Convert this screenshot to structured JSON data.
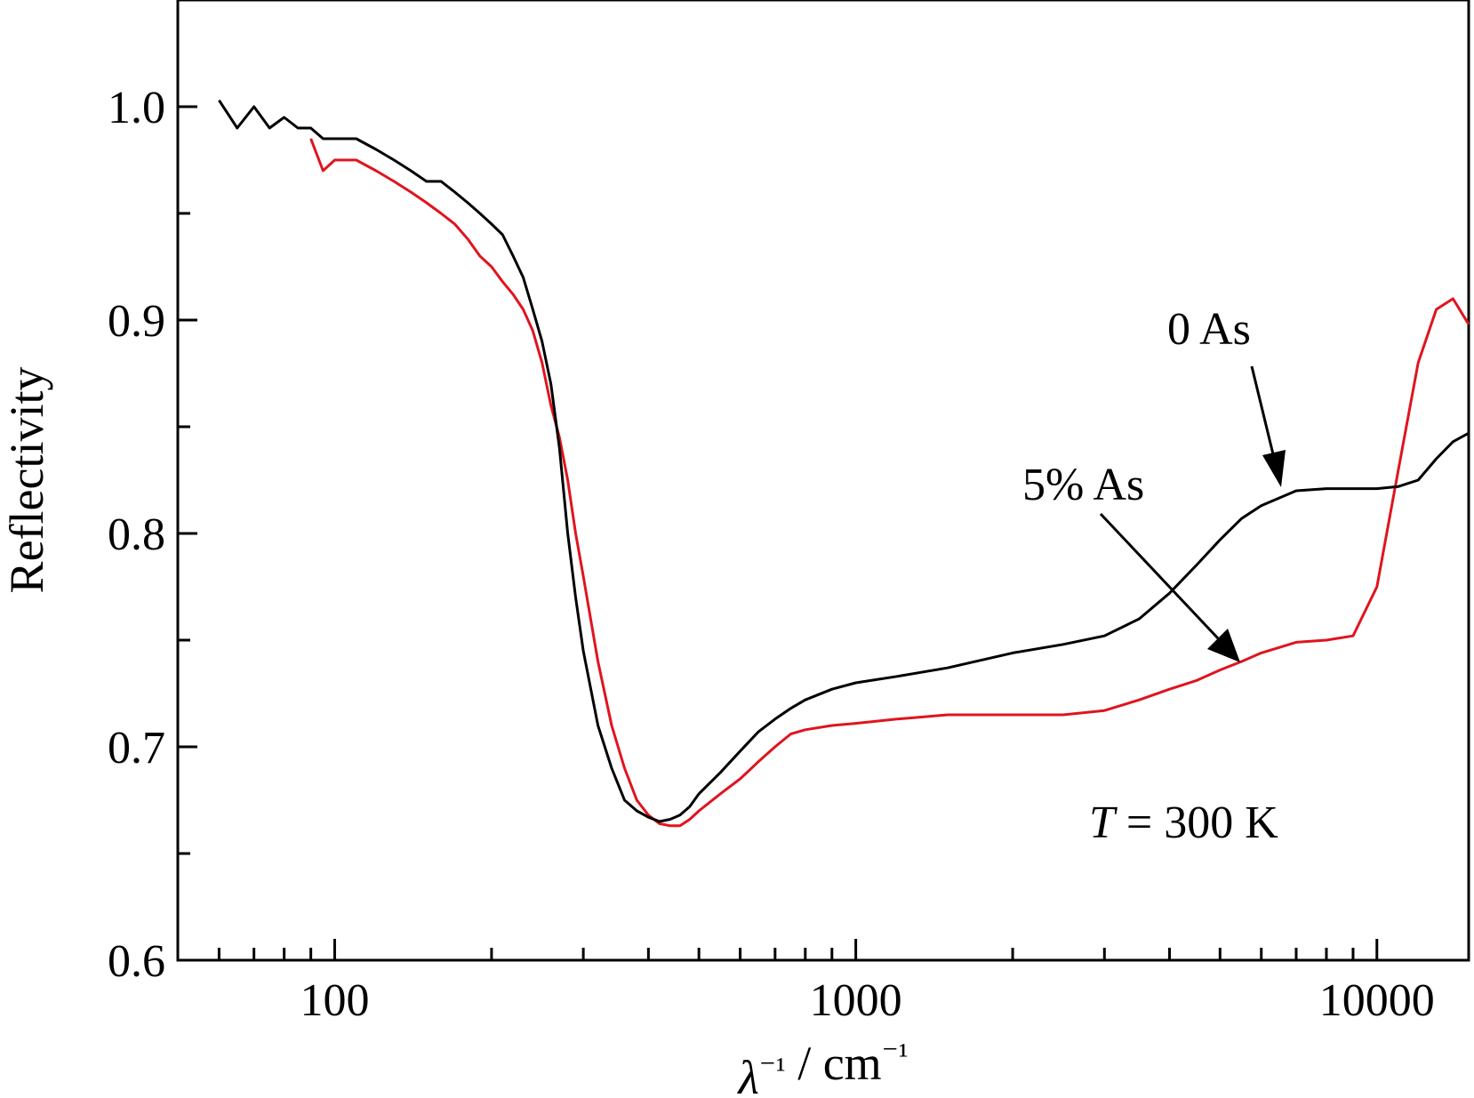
{
  "chart_data": {
    "type": "line",
    "title": "",
    "xlabel": "λ⁻¹ / cm⁻¹",
    "ylabel": "Reflectivity",
    "x_scale": "log",
    "xlim": [
      50,
      15000
    ],
    "ylim": [
      0.6,
      1.05
    ],
    "x_ticks": [
      {
        "value": 100,
        "label": "100"
      },
      {
        "value": 1000,
        "label": "1000"
      },
      {
        "value": 10000,
        "label": "10000"
      }
    ],
    "y_ticks": [
      {
        "value": 0.6,
        "label": "0.6"
      },
      {
        "value": 0.7,
        "label": "0.7"
      },
      {
        "value": 0.8,
        "label": "0.8"
      },
      {
        "value": 0.9,
        "label": "0.9"
      },
      {
        "value": 1.0,
        "label": "1.0"
      }
    ],
    "grid": false,
    "series": [
      {
        "name": "0 As",
        "color": "#000000",
        "x": [
          60,
          65,
          70,
          75,
          80,
          85,
          90,
          95,
          100,
          110,
          120,
          130,
          140,
          150,
          160,
          170,
          180,
          190,
          200,
          210,
          220,
          230,
          240,
          250,
          260,
          270,
          280,
          290,
          300,
          320,
          340,
          360,
          380,
          400,
          420,
          440,
          460,
          480,
          500,
          550,
          600,
          650,
          700,
          750,
          800,
          900,
          1000,
          1200,
          1500,
          2000,
          2500,
          3000,
          3500,
          4000,
          4500,
          5000,
          5500,
          6000,
          7000,
          8000,
          9000,
          10000,
          11000,
          12000,
          13000,
          14000,
          15000
        ],
        "y": [
          1.003,
          0.99,
          1.0,
          0.99,
          0.995,
          0.99,
          0.99,
          0.985,
          0.985,
          0.985,
          0.98,
          0.975,
          0.97,
          0.965,
          0.965,
          0.96,
          0.955,
          0.95,
          0.945,
          0.94,
          0.93,
          0.92,
          0.905,
          0.89,
          0.87,
          0.84,
          0.8,
          0.77,
          0.745,
          0.71,
          0.69,
          0.675,
          0.67,
          0.667,
          0.665,
          0.666,
          0.668,
          0.672,
          0.678,
          0.688,
          0.698,
          0.707,
          0.713,
          0.718,
          0.722,
          0.727,
          0.73,
          0.733,
          0.737,
          0.744,
          0.748,
          0.752,
          0.76,
          0.772,
          0.785,
          0.797,
          0.807,
          0.813,
          0.82,
          0.821,
          0.821,
          0.821,
          0.822,
          0.825,
          0.835,
          0.843,
          0.847
        ]
      },
      {
        "name": "5% As",
        "color": "#e0141e",
        "x": [
          90,
          95,
          100,
          110,
          120,
          130,
          140,
          150,
          160,
          170,
          180,
          190,
          200,
          210,
          220,
          230,
          240,
          250,
          260,
          270,
          280,
          290,
          300,
          320,
          340,
          360,
          380,
          400,
          420,
          440,
          460,
          480,
          500,
          550,
          600,
          650,
          700,
          750,
          800,
          900,
          1000,
          1200,
          1500,
          2000,
          2500,
          3000,
          3500,
          4000,
          4500,
          5000,
          5500,
          6000,
          7000,
          8000,
          9000,
          10000,
          11000,
          12000,
          13000,
          14000,
          15000
        ],
        "y": [
          0.985,
          0.97,
          0.975,
          0.975,
          0.97,
          0.965,
          0.96,
          0.955,
          0.95,
          0.945,
          0.938,
          0.93,
          0.925,
          0.918,
          0.912,
          0.905,
          0.895,
          0.88,
          0.86,
          0.845,
          0.825,
          0.8,
          0.78,
          0.74,
          0.71,
          0.69,
          0.675,
          0.668,
          0.664,
          0.663,
          0.663,
          0.666,
          0.67,
          0.678,
          0.685,
          0.693,
          0.7,
          0.706,
          0.708,
          0.71,
          0.711,
          0.713,
          0.715,
          0.715,
          0.715,
          0.717,
          0.722,
          0.727,
          0.731,
          0.736,
          0.74,
          0.744,
          0.749,
          0.75,
          0.752,
          0.775,
          0.83,
          0.88,
          0.905,
          0.91,
          0.898
        ]
      }
    ],
    "annotations": [
      {
        "text": "0 As",
        "series": "0 As"
      },
      {
        "text": "5% As",
        "series": "5% As"
      },
      {
        "text_italic": "T",
        "text": " = 300 K"
      }
    ]
  }
}
